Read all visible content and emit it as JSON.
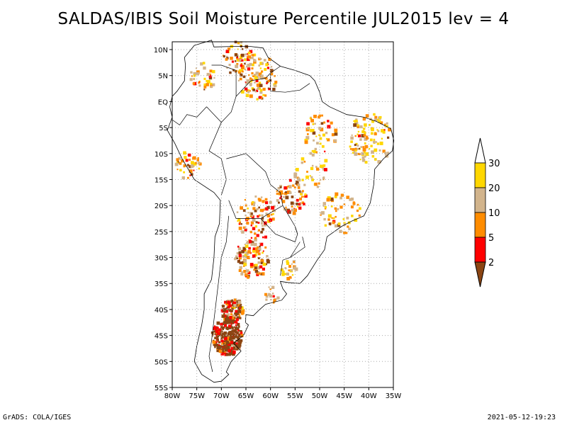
{
  "title": "SALDAS/IBIS Soil Moisture Percentile JUL2015 lev = 4",
  "footer_left": "GrADS: COLA/IGES",
  "footer_right": "2021-05-12-19:23",
  "map": {
    "lon_range": [
      -80,
      -35
    ],
    "lat_range": [
      -55,
      11.5
    ],
    "lon_ticks": [
      {
        "v": -80,
        "label": "80W"
      },
      {
        "v": -75,
        "label": "75W"
      },
      {
        "v": -70,
        "label": "70W"
      },
      {
        "v": -65,
        "label": "65W"
      },
      {
        "v": -60,
        "label": "60W"
      },
      {
        "v": -55,
        "label": "55W"
      },
      {
        "v": -50,
        "label": "50W"
      },
      {
        "v": -45,
        "label": "45W"
      },
      {
        "v": -40,
        "label": "40W"
      },
      {
        "v": -35,
        "label": "35W"
      }
    ],
    "lat_ticks": [
      {
        "v": 10,
        "label": "10N"
      },
      {
        "v": 5,
        "label": "5N"
      },
      {
        "v": 0,
        "label": "EQ"
      },
      {
        "v": -5,
        "label": "5S"
      },
      {
        "v": -10,
        "label": "10S"
      },
      {
        "v": -15,
        "label": "15S"
      },
      {
        "v": -20,
        "label": "20S"
      },
      {
        "v": -25,
        "label": "25S"
      },
      {
        "v": -30,
        "label": "30S"
      },
      {
        "v": -35,
        "label": "35S"
      },
      {
        "v": -40,
        "label": "40S"
      },
      {
        "v": -45,
        "label": "45S"
      },
      {
        "v": -50,
        "label": "50S"
      },
      {
        "v": -55,
        "label": "55S"
      }
    ],
    "grid": true
  },
  "colorbar": {
    "labels": [
      "2",
      "5",
      "10",
      "20",
      "30"
    ],
    "colors": [
      "#8b4513",
      "#ff0000",
      "#ff8c00",
      "#d2b48c",
      "#ffd700",
      "#ffffff"
    ]
  }
}
